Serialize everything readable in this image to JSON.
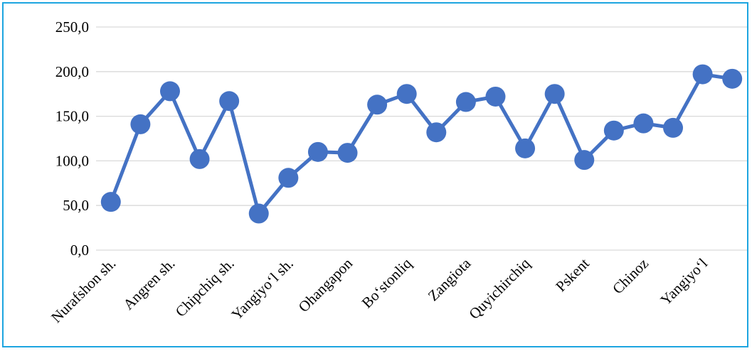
{
  "chart_data": {
    "type": "line",
    "title": "",
    "xlabel": "",
    "ylabel": "",
    "ylim": [
      0,
      250
    ],
    "yticks": [
      "0,0",
      "50,0",
      "100,0",
      "150,0",
      "200,0",
      "250,0"
    ],
    "grid": true,
    "legend": "none",
    "categories": [
      "Nurafshon sh.",
      "",
      "Angren sh.",
      "",
      "Chipchiq sh.",
      "",
      "Yangiyo‘l sh.",
      "",
      "Ohangapon",
      "",
      "Bo‘stonliq",
      "",
      "Zangiota",
      "",
      "Quyichirchiq",
      "",
      "Pskent",
      "",
      "Chinoz",
      "",
      "Yangiyo‘l",
      ""
    ],
    "series": [
      {
        "values": [
          54,
          141,
          178,
          102,
          167,
          41,
          81,
          110,
          109,
          163,
          175,
          132,
          166,
          172,
          114,
          175,
          101,
          134,
          142,
          137,
          197,
          192
        ]
      }
    ],
    "colors": {
      "line": "#4472c4",
      "marker": "#4472c4",
      "grid": "#d9d9d9",
      "frame": "#1da5e0"
    }
  }
}
